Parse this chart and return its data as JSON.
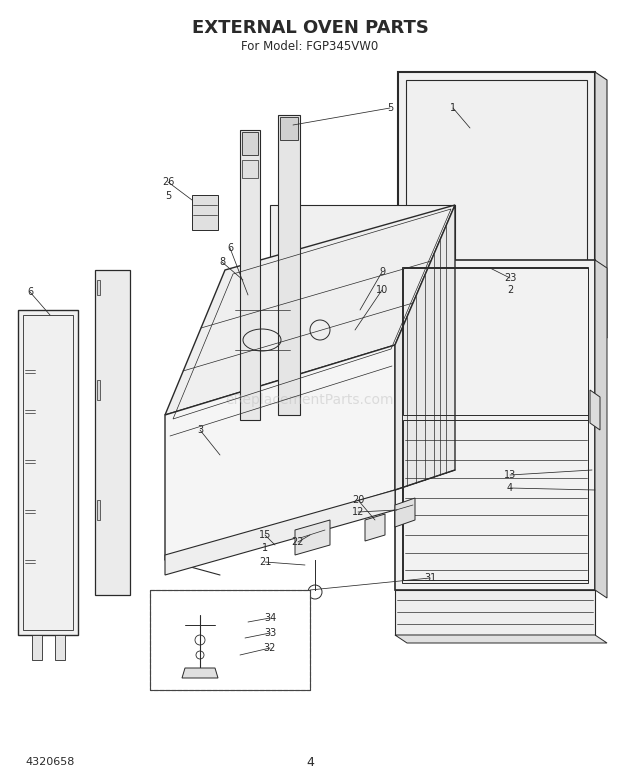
{
  "title": "EXTERNAL OVEN PARTS",
  "subtitle": "For Model: FGP345VW0",
  "title_fontsize": 13,
  "subtitle_fontsize": 8.5,
  "bg_color": "#ffffff",
  "line_color": "#2a2a2a",
  "watermark": "eReplacementParts.com",
  "watermark_color": "#bbbbbb",
  "watermark_alpha": 0.45,
  "bottom_left_text": "4320658",
  "bottom_center_text": "4",
  "fig_width": 6.2,
  "fig_height": 7.82,
  "dpi": 100
}
